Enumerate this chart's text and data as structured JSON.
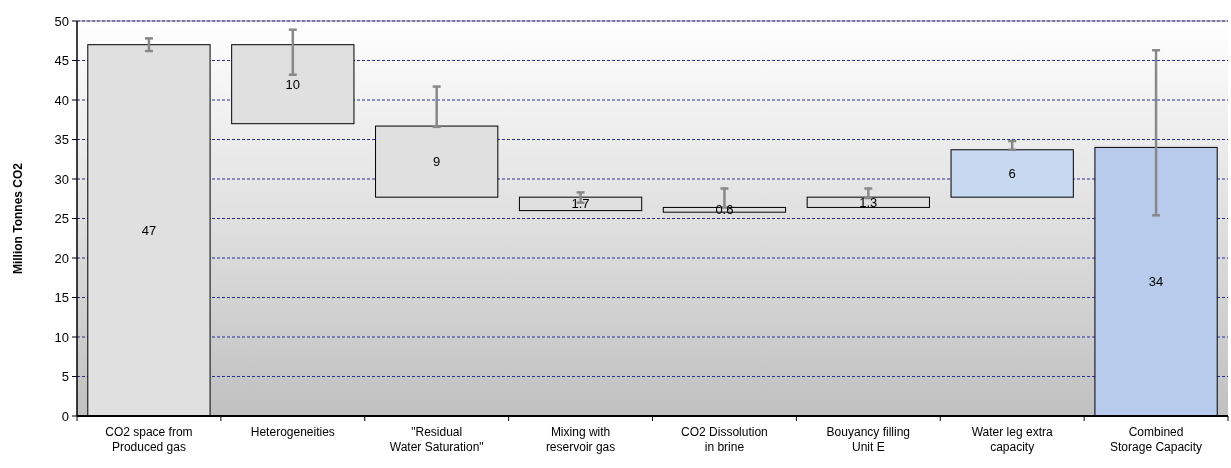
{
  "chart_data": {
    "type": "bar",
    "ylabel": "Million Tonnes CO2",
    "categories": [
      "CO2 space from\nProduced gas",
      "Heterogeneities",
      "\"Residual\nWater Saturation\"",
      "Mixing with\nreservoir gas",
      "CO2 Dissolution\nin brine",
      "Bouyancy filling\nUnit E",
      "Water leg extra\ncapacity",
      "Combined\nStorage Capacity"
    ],
    "values": [
      47,
      10,
      9,
      1.7,
      0.6,
      1.3,
      6,
      34
    ],
    "base": [
      0,
      37,
      27.7,
      26,
      25.8,
      26.4,
      27.7,
      0
    ],
    "errors": [
      [
        46.2,
        47.8
      ],
      [
        43.2,
        48.9
      ],
      [
        36.6,
        41.7
      ],
      [
        27,
        28.3
      ],
      [
        26.4,
        28.8
      ],
      [
        27.6,
        28.8
      ],
      [
        33.7,
        34.8
      ],
      [
        25.4,
        46.3
      ]
    ],
    "colors": [
      "#e0e0e0",
      "#e0e0e0",
      "#e0e0e0",
      "#e0e0e0",
      "#e0e0e0",
      "#e0e0e0",
      "#c6d9f1",
      "#b9cbec"
    ],
    "data_labels": true,
    "ylim": [
      0,
      50
    ],
    "yticks": [
      0,
      5,
      10,
      15,
      20,
      25,
      30,
      35,
      40,
      45,
      50
    ],
    "grid": "y"
  }
}
